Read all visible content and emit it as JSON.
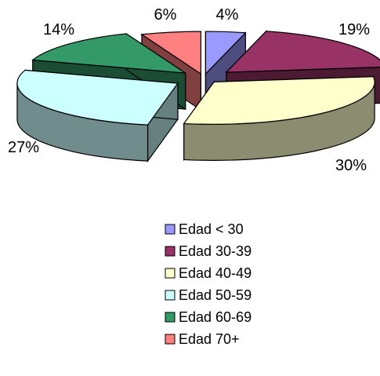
{
  "chart_data": {
    "type": "pie",
    "style": "3d-exploded",
    "title": "",
    "series": [
      {
        "name": "",
        "categories": [
          "Edad < 30",
          "Edad 30-39",
          "Edad 40-49",
          "Edad 50-59",
          "Edad 60-69",
          "Edad 70+"
        ],
        "values": [
          4,
          19,
          30,
          27,
          14,
          6
        ],
        "data_labels": [
          "4%",
          "19%",
          "30%",
          "27%",
          "14%",
          "6%"
        ],
        "colors": [
          "#9999FF",
          "#993366",
          "#FFFFCC",
          "#CCFFFF",
          "#339966",
          "#FF8080"
        ]
      }
    ],
    "legend": {
      "position": "bottom",
      "entries": [
        "Edad < 30",
        "Edad 30-39",
        "Edad 40-49",
        "Edad 50-59",
        "Edad 60-69",
        "Edad 70+"
      ]
    }
  }
}
